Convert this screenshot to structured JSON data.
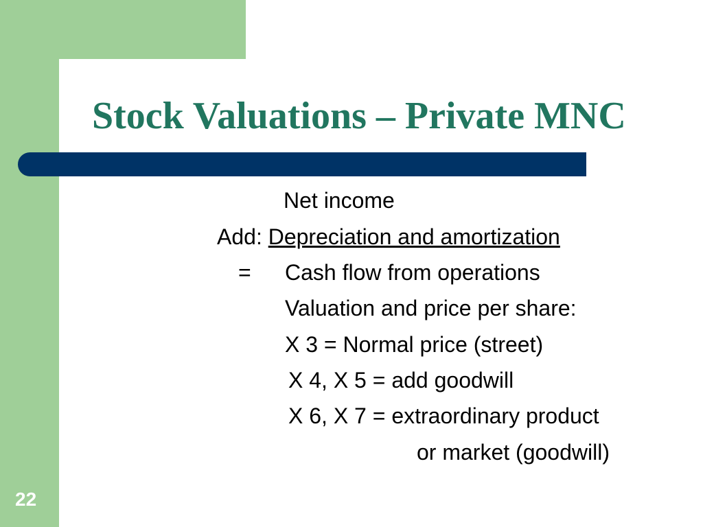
{
  "slide": {
    "title": "Stock Valuations – Private MNC",
    "page_number": "22",
    "colors": {
      "accent_green": "#9fcf98",
      "title_green": "#21765f",
      "bar_blue": "#003366"
    },
    "lines": {
      "net_income": "Net income",
      "add_prefix": "Add: ",
      "add_item": "Depreciation and amortization",
      "equals_sign": "=",
      "cash_flow": "Cash flow from operations",
      "valuation": "Valuation and price per share:",
      "x3": "X 3 = Normal  price (street)",
      "x45": "X 4, X 5 = add goodwill",
      "x67": "X 6, X 7 = extraordinary product",
      "x67_cont": "or market (goodwill)"
    }
  }
}
